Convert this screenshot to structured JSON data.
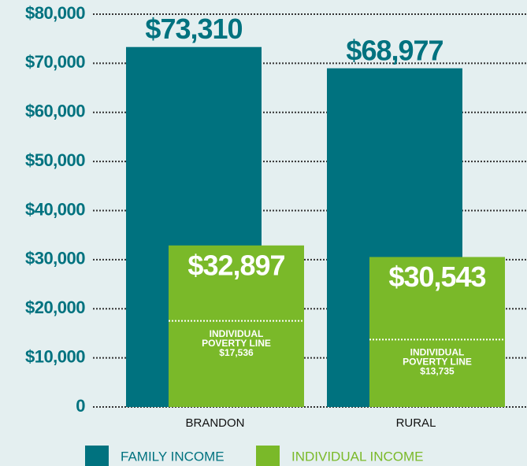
{
  "chart_data": {
    "type": "bar",
    "categories": [
      "BRANDON",
      "RURAL"
    ],
    "series": [
      {
        "name": "FAMILY INCOME",
        "color": "#00727f",
        "values": [
          73310,
          68977
        ],
        "value_labels": [
          "$73,310",
          "$68,977"
        ]
      },
      {
        "name": "INDIVIDUAL INCOME",
        "color": "#7ab929",
        "values": [
          32897,
          30543
        ],
        "value_labels": [
          "$32,897",
          "$30,543"
        ]
      }
    ],
    "poverty_line": {
      "label_lines": [
        "INDIVIDUAL",
        "POVERTY LINE"
      ],
      "values": [
        17536,
        13735
      ],
      "value_labels": [
        "$17,536",
        "$13,735"
      ]
    },
    "ylim": [
      0,
      80000
    ],
    "yticks": [
      0,
      {
        "value": 10000,
        "label": "$10,000"
      },
      {
        "value": 20000,
        "label": "$20,000"
      },
      {
        "value": 30000,
        "label": "$30,000"
      },
      {
        "value": 40000,
        "label": "$40,000"
      },
      {
        "value": 50000,
        "label": "$50,000"
      },
      {
        "value": 60000,
        "label": "$60,000"
      },
      {
        "value": 70000,
        "label": "$70,000"
      },
      {
        "value": 80000,
        "label": "$80,000"
      }
    ],
    "grid": true
  }
}
